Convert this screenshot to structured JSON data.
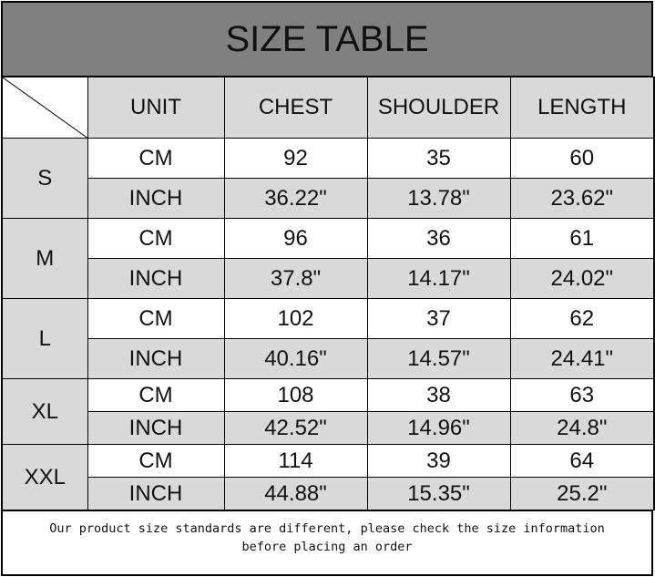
{
  "title": "SIZE TABLE",
  "headers": [
    "UNIT",
    "CHEST",
    "SHOULDER",
    "LENGTH"
  ],
  "sizes": [
    {
      "size": "S",
      "cm": {
        "unit": "CM",
        "chest": "92",
        "shoulder": "35",
        "length": "60"
      },
      "inch": {
        "unit": "INCH",
        "chest": "36.22\"",
        "shoulder": "13.78\"",
        "length": "23.62\""
      }
    },
    {
      "size": "M",
      "cm": {
        "unit": "CM",
        "chest": "96",
        "shoulder": "36",
        "length": "61"
      },
      "inch": {
        "unit": "INCH",
        "chest": "37.8\"",
        "shoulder": "14.17\"",
        "length": "24.02\""
      }
    },
    {
      "size": "L",
      "cm": {
        "unit": "CM",
        "chest": "102",
        "shoulder": "37",
        "length": "62"
      },
      "inch": {
        "unit": "INCH",
        "chest": "40.16\"",
        "shoulder": "14.57\"",
        "length": "24.41\""
      }
    },
    {
      "size": "XL",
      "cm": {
        "unit": "CM",
        "chest": "108",
        "shoulder": "38",
        "length": "63"
      },
      "inch": {
        "unit": "INCH",
        "chest": "42.52\"",
        "shoulder": "14.96\"",
        "length": "24.8\""
      }
    },
    {
      "size": "XXL",
      "cm": {
        "unit": "CM",
        "chest": "114",
        "shoulder": "39",
        "length": "64"
      },
      "inch": {
        "unit": "INCH",
        "chest": "44.88\"",
        "shoulder": "15.35\"",
        "length": "25.2\""
      }
    }
  ],
  "footer": {
    "line1": "Our product size standards are different, please check the size information",
    "line2": "before placing an order"
  },
  "colors": {
    "title_bg": "#808080",
    "header_bg": "#d9d9d9"
  }
}
